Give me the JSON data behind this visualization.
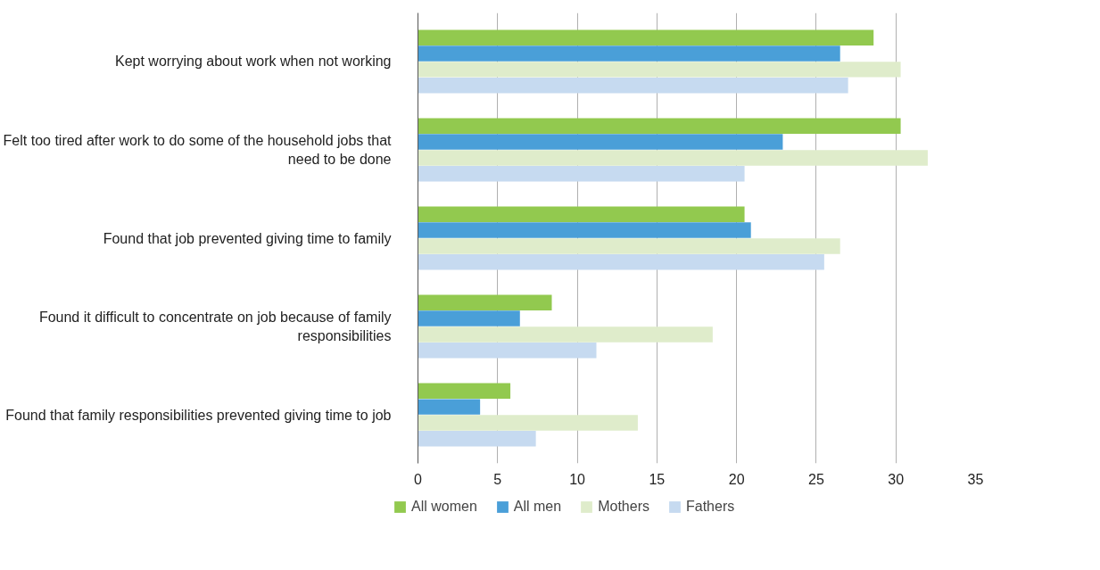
{
  "chart_data": {
    "type": "bar",
    "orientation": "horizontal",
    "categories": [
      "Kept worrying about work when not working",
      "Felt too tired after work to do some of the household jobs that need to be done",
      "Found that job prevented giving time to family",
      "Found it difficult to concentrate on job because of family responsibilities",
      "Found that family responsibilities prevented giving time to job"
    ],
    "series": [
      {
        "name": "All women",
        "color": "#92c94f",
        "values": [
          28.6,
          30.3,
          20.5,
          8.4,
          5.8
        ]
      },
      {
        "name": "All men",
        "color": "#4a9fd8",
        "values": [
          26.5,
          22.9,
          20.9,
          6.4,
          3.9
        ]
      },
      {
        "name": "Mothers",
        "color": "#dfeccb",
        "values": [
          30.3,
          32.0,
          26.5,
          18.5,
          13.8
        ]
      },
      {
        "name": "Fathers",
        "color": "#c6daf0",
        "values": [
          27.0,
          20.5,
          25.5,
          11.2,
          7.4
        ]
      }
    ],
    "xlim": [
      0,
      35
    ],
    "xticks": [
      0,
      5,
      10,
      15,
      20,
      25,
      30,
      35
    ],
    "grid": "x",
    "legend": "bottom"
  }
}
